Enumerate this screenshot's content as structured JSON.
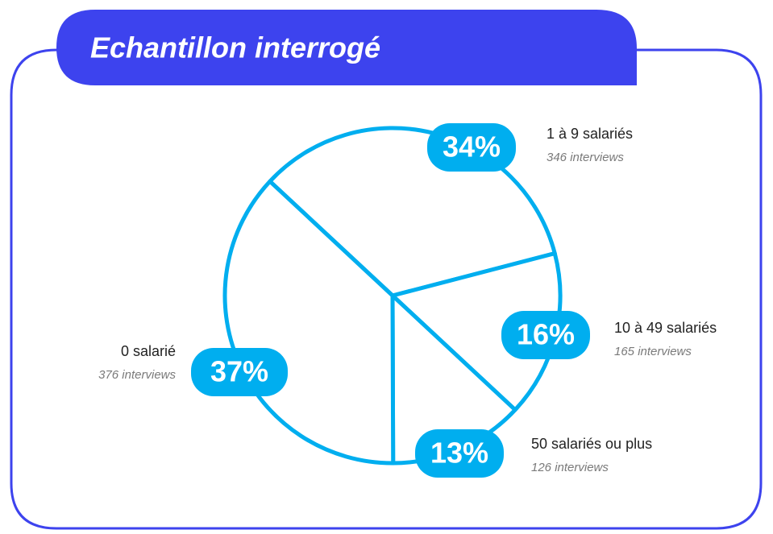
{
  "chart_data": {
    "type": "pie",
    "title": "Echantillon interrogé",
    "categories": [
      "1 à 9 salariés",
      "10 à 49 salariés",
      "50 salariés ou plus",
      "0 salarié"
    ],
    "values": [
      34,
      16,
      13,
      37
    ],
    "value_labels": [
      "34%",
      "16%",
      "13%",
      "37%"
    ],
    "annotations": [
      "346 interviews",
      "165 interviews",
      "126 interviews",
      "376 interviews"
    ],
    "color": "#00aeef",
    "frame_color": "#3d43ee"
  }
}
